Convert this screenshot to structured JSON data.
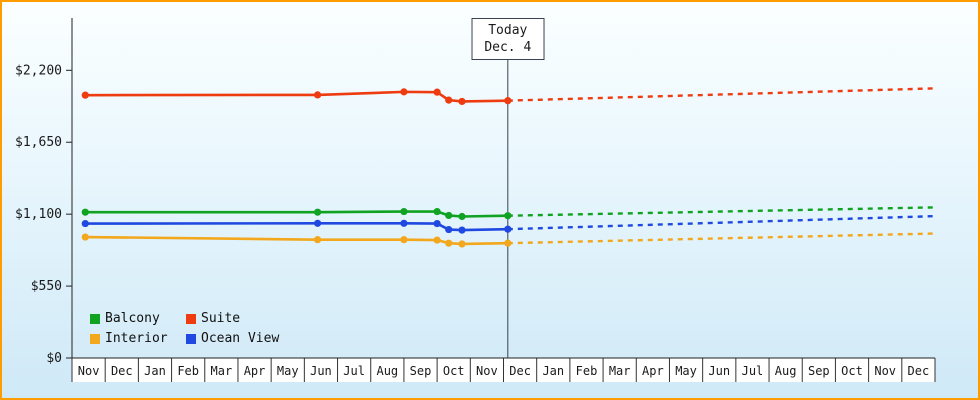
{
  "chart_data": {
    "type": "line",
    "title": "",
    "x_axis": {
      "months": [
        "Nov",
        "Dec",
        "Jan",
        "Feb",
        "Mar",
        "Apr",
        "May",
        "Jun",
        "Jul",
        "Aug",
        "Sep",
        "Oct",
        "Nov",
        "Dec",
        "Jan",
        "Feb",
        "Mar",
        "Apr",
        "May",
        "Jun",
        "Jul",
        "Aug",
        "Sep",
        "Oct",
        "Nov",
        "Dec"
      ],
      "units": 26
    },
    "y_axis": {
      "ticks": [
        0,
        550,
        1100,
        1650,
        2200
      ],
      "labels": [
        "$0",
        "$550",
        "$1,100",
        "$1,650",
        "$2,200"
      ],
      "max": 2600
    },
    "today": {
      "x": 13.13,
      "label_line1": "Today",
      "label_line2": "Dec. 4"
    },
    "grid": false,
    "legend_position": "bottom-left",
    "series": [
      {
        "name": "Balcony",
        "color": "#10a321",
        "history": [
          [
            0.4,
            1115
          ],
          [
            7.4,
            1115
          ],
          [
            10.0,
            1120
          ],
          [
            11.0,
            1120
          ],
          [
            11.35,
            1090
          ],
          [
            11.75,
            1082
          ],
          [
            13.13,
            1088
          ]
        ],
        "forecast": [
          [
            13.13,
            1088
          ],
          [
            26,
            1152
          ]
        ]
      },
      {
        "name": "Suite",
        "color": "#ee3b10",
        "history": [
          [
            0.4,
            2010
          ],
          [
            7.4,
            2012
          ],
          [
            10.0,
            2035
          ],
          [
            11.0,
            2033
          ],
          [
            11.35,
            1972
          ],
          [
            11.75,
            1962
          ],
          [
            13.13,
            1968
          ]
        ],
        "forecast": [
          [
            13.13,
            1968
          ],
          [
            26,
            2062
          ]
        ]
      },
      {
        "name": "Interior",
        "color": "#f2a71c",
        "history": [
          [
            0.4,
            925
          ],
          [
            7.4,
            905
          ],
          [
            10.0,
            905
          ],
          [
            11.0,
            902
          ],
          [
            11.35,
            878
          ],
          [
            11.75,
            872
          ],
          [
            13.13,
            878
          ]
        ],
        "forecast": [
          [
            13.13,
            878
          ],
          [
            26,
            952
          ]
        ]
      },
      {
        "name": "Ocean View",
        "color": "#1f49e0",
        "history": [
          [
            0.4,
            1028
          ],
          [
            7.4,
            1030
          ],
          [
            10.0,
            1030
          ],
          [
            11.0,
            1028
          ],
          [
            11.35,
            982
          ],
          [
            11.75,
            978
          ],
          [
            13.13,
            985
          ]
        ],
        "forecast": [
          [
            13.13,
            985
          ],
          [
            26,
            1085
          ]
        ]
      }
    ],
    "frame": {
      "border_color": "#ff9c00",
      "background_top": "#fbffff",
      "background_bottom": "#cfe9f7"
    }
  }
}
